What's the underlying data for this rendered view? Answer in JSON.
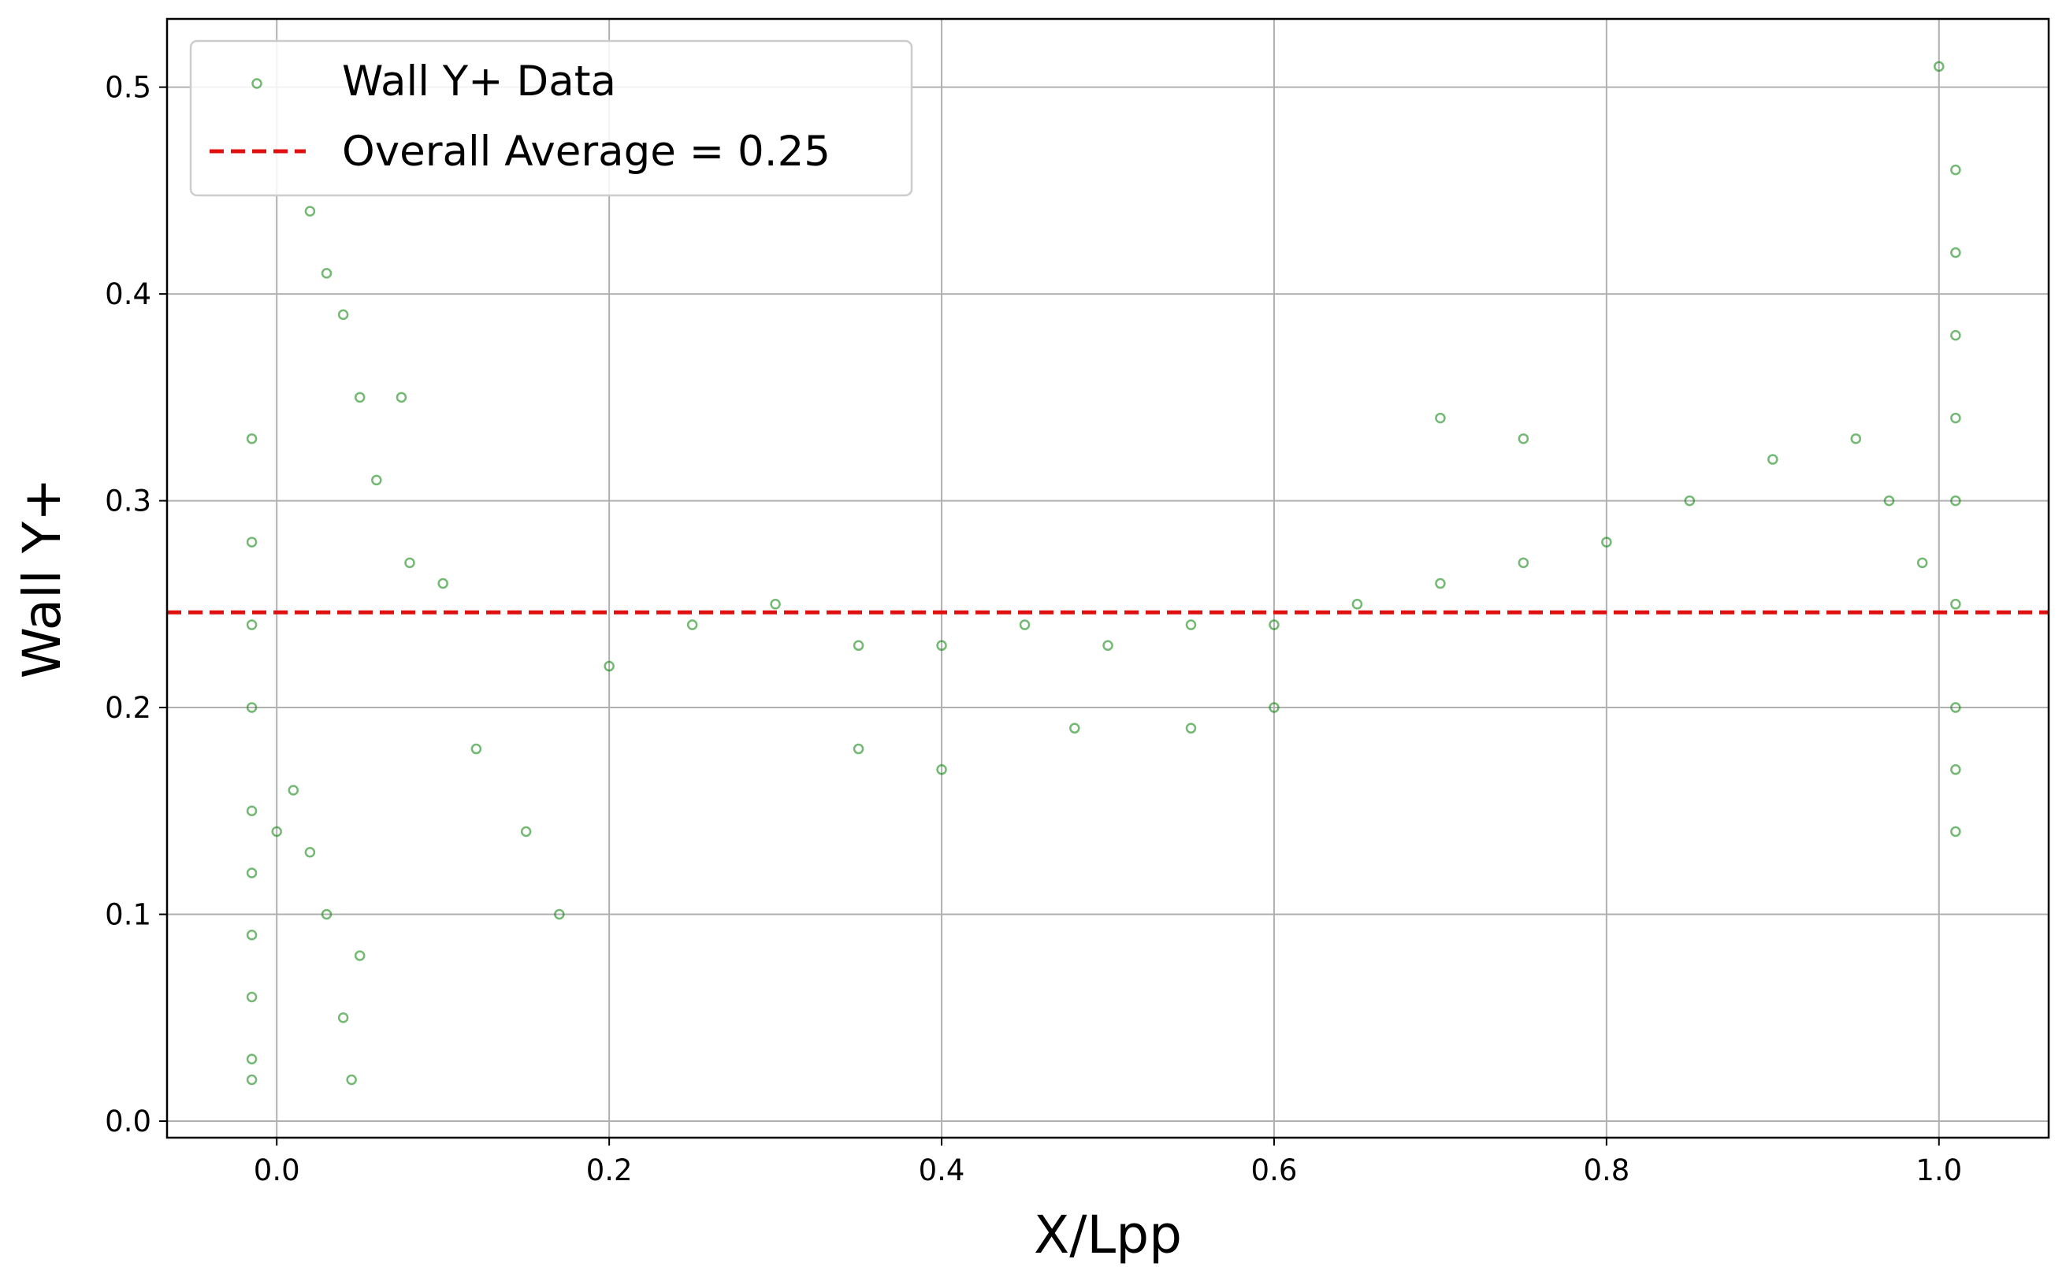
{
  "chart_data": {
    "type": "scatter",
    "xlabel": "X/Lpp",
    "ylabel": "Wall Y+",
    "xlim": [
      -0.066,
      1.066
    ],
    "ylim": [
      -0.008,
      0.533
    ],
    "xticks": [
      0.0,
      0.2,
      0.4,
      0.6,
      0.8,
      1.0
    ],
    "xtick_labels": [
      "0.0",
      "0.2",
      "0.4",
      "0.6",
      "0.8",
      "1.0"
    ],
    "yticks": [
      0.0,
      0.1,
      0.2,
      0.3,
      0.4,
      0.5
    ],
    "ytick_labels": [
      "0.0",
      "0.1",
      "0.2",
      "0.3",
      "0.4",
      "0.5"
    ],
    "grid": true,
    "legend_position": "upper-left",
    "series": [
      {
        "name": "Wall Y+ Data",
        "kind": "scatter",
        "marker": "hollow-circle",
        "color": "#008000",
        "note_points": "approximate representative sample of the dense point cloud",
        "points": [
          [
            -0.015,
            0.33
          ],
          [
            -0.015,
            0.28
          ],
          [
            -0.015,
            0.24
          ],
          [
            -0.015,
            0.2
          ],
          [
            -0.015,
            0.15
          ],
          [
            -0.015,
            0.12
          ],
          [
            -0.015,
            0.09
          ],
          [
            -0.015,
            0.06
          ],
          [
            -0.015,
            0.03
          ],
          [
            -0.015,
            0.02
          ],
          [
            0.0,
            0.14
          ],
          [
            0.01,
            0.16
          ],
          [
            0.02,
            0.13
          ],
          [
            0.03,
            0.1
          ],
          [
            0.04,
            0.05
          ],
          [
            0.045,
            0.02
          ],
          [
            0.05,
            0.08
          ],
          [
            0.02,
            0.44
          ],
          [
            0.03,
            0.41
          ],
          [
            0.04,
            0.39
          ],
          [
            0.05,
            0.35
          ],
          [
            0.06,
            0.31
          ],
          [
            0.075,
            0.35
          ],
          [
            0.08,
            0.27
          ],
          [
            0.1,
            0.26
          ],
          [
            0.12,
            0.18
          ],
          [
            0.15,
            0.14
          ],
          [
            0.17,
            0.1
          ],
          [
            0.2,
            0.22
          ],
          [
            0.25,
            0.24
          ],
          [
            0.3,
            0.25
          ],
          [
            0.35,
            0.23
          ],
          [
            0.4,
            0.23
          ],
          [
            0.45,
            0.24
          ],
          [
            0.5,
            0.23
          ],
          [
            0.55,
            0.24
          ],
          [
            0.6,
            0.24
          ],
          [
            0.65,
            0.25
          ],
          [
            0.7,
            0.26
          ],
          [
            0.75,
            0.27
          ],
          [
            0.8,
            0.28
          ],
          [
            0.85,
            0.3
          ],
          [
            0.9,
            0.32
          ],
          [
            0.95,
            0.33
          ],
          [
            0.97,
            0.3
          ],
          [
            0.99,
            0.27
          ],
          [
            1.01,
            0.46
          ],
          [
            1.01,
            0.42
          ],
          [
            1.01,
            0.38
          ],
          [
            1.01,
            0.34
          ],
          [
            1.01,
            0.3
          ],
          [
            1.01,
            0.25
          ],
          [
            1.01,
            0.2
          ],
          [
            1.01,
            0.17
          ],
          [
            1.01,
            0.14
          ],
          [
            1.0,
            0.51
          ],
          [
            0.35,
            0.18
          ],
          [
            0.4,
            0.17
          ],
          [
            0.48,
            0.19
          ],
          [
            0.55,
            0.19
          ],
          [
            0.6,
            0.2
          ],
          [
            0.7,
            0.34
          ],
          [
            0.75,
            0.33
          ]
        ]
      },
      {
        "name": "Overall Average = 0.25",
        "kind": "hline",
        "y": 0.246,
        "style": "dashed",
        "color": "#e01010"
      }
    ]
  }
}
